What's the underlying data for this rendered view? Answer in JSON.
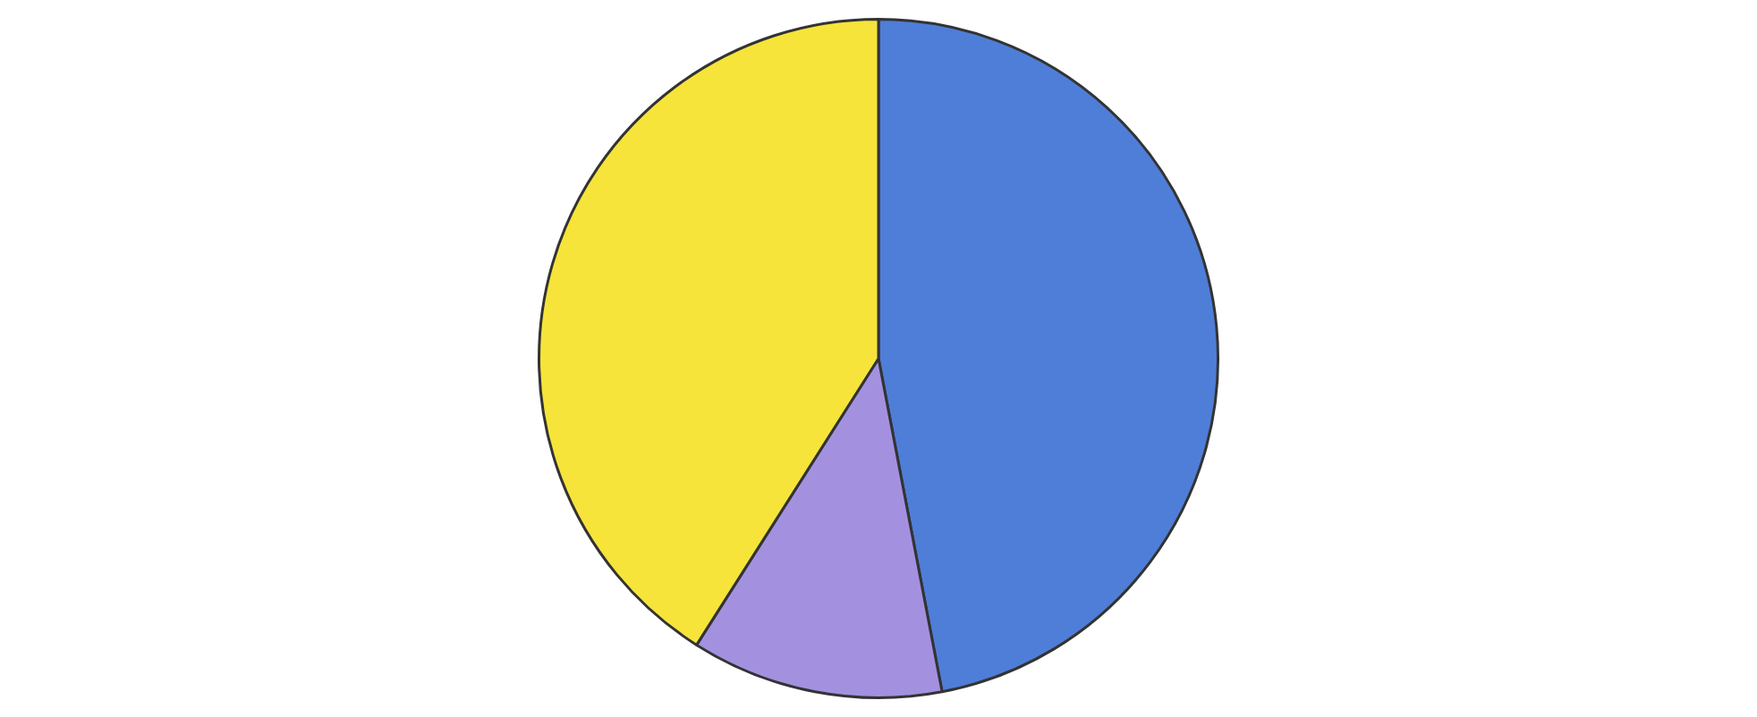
{
  "chart_data": {
    "type": "pie",
    "categories": [
      null,
      null,
      null
    ],
    "values": [
      47,
      12,
      41
    ],
    "colors": [
      "#4f7ed8",
      "#a391e0",
      "#f6e43a"
    ]
  }
}
